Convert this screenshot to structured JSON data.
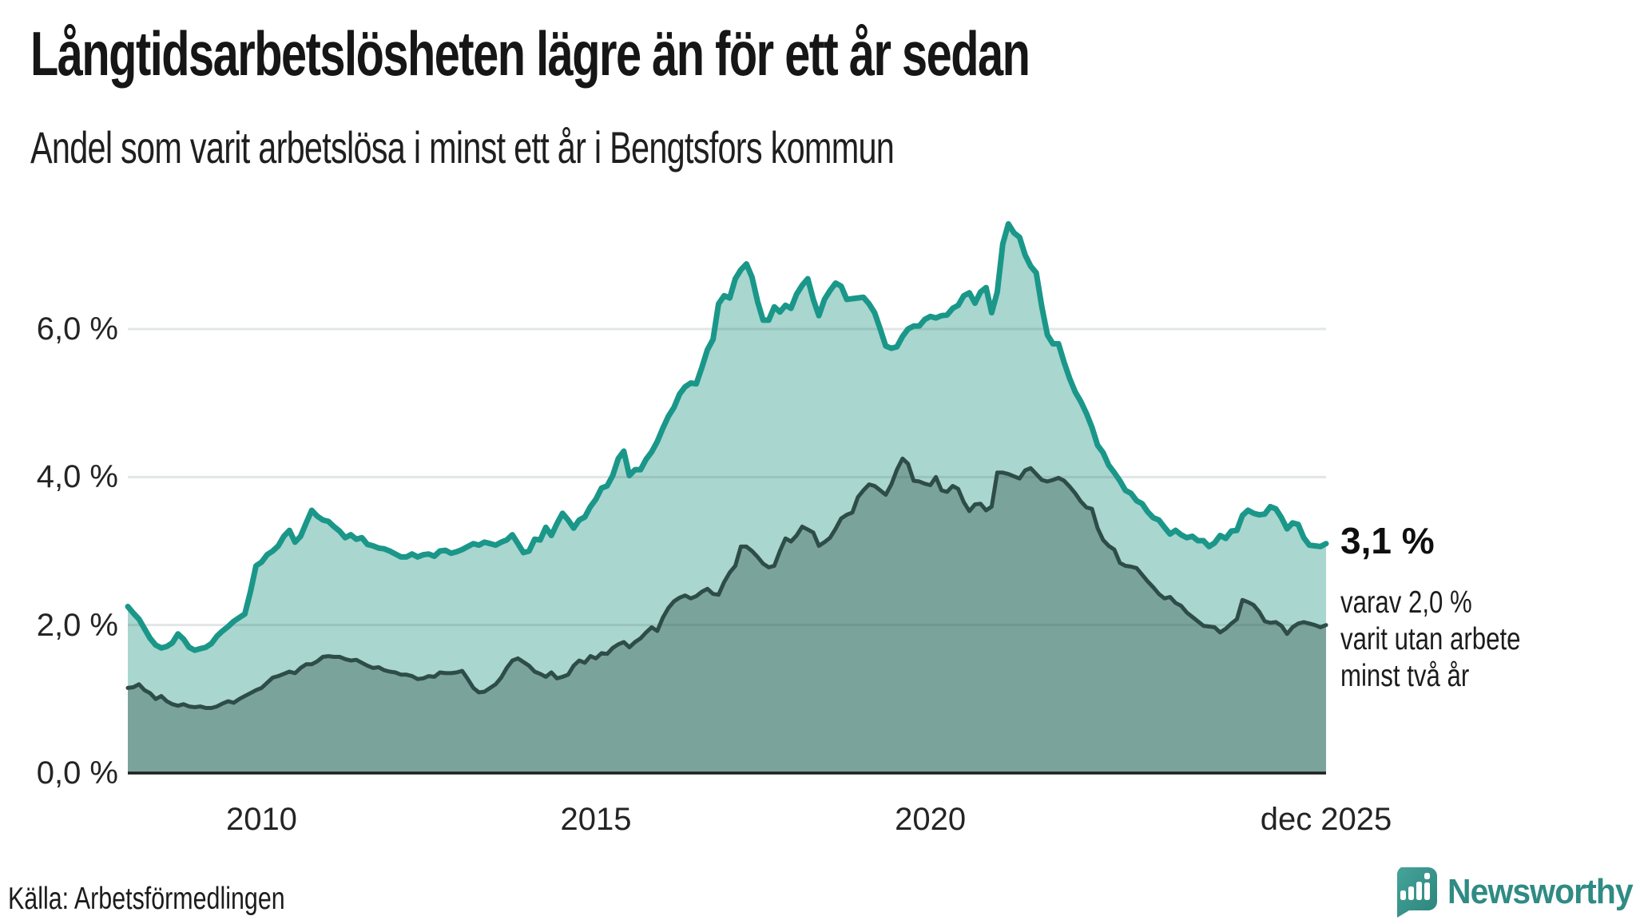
{
  "header": {
    "title": "Långtidsarbetslösheten lägre än för ett år sedan",
    "subtitle": "Andel som varit arbetslösa i minst ett år i Bengtsfors kommun"
  },
  "chart_data": {
    "type": "area",
    "unit": "%",
    "x_start": "jan 2008",
    "x_end": "dec 2025",
    "x_frequency": "monthly",
    "ylim": [
      0,
      8.3
    ],
    "grid": "horizontal",
    "series": [
      {
        "name": "Andel arbetslösa minst ett år",
        "line_color": "#1a9789",
        "fill_color": "#a9d6cf",
        "values": [
          2.25,
          2.16,
          2.08,
          1.95,
          1.82,
          1.73,
          1.69,
          1.71,
          1.76,
          1.88,
          1.81,
          1.7,
          1.66,
          1.68,
          1.7,
          1.75,
          1.85,
          1.92,
          1.98,
          2.05,
          2.1,
          2.15,
          2.45,
          2.8,
          2.85,
          2.95,
          3.0,
          3.07,
          3.2,
          3.28,
          3.12,
          3.2,
          3.38,
          3.55,
          3.47,
          3.42,
          3.4,
          3.33,
          3.27,
          3.18,
          3.22,
          3.16,
          3.18,
          3.09,
          3.07,
          3.04,
          3.03,
          3.0,
          2.96,
          2.92,
          2.92,
          2.96,
          2.92,
          2.95,
          2.96,
          2.93,
          3.0,
          3.01,
          2.97,
          2.99,
          3.02,
          3.06,
          3.1,
          3.08,
          3.12,
          3.1,
          3.08,
          3.12,
          3.15,
          3.22,
          3.1,
          2.98,
          3.0,
          3.16,
          3.15,
          3.32,
          3.21,
          3.37,
          3.51,
          3.42,
          3.31,
          3.42,
          3.46,
          3.6,
          3.7,
          3.85,
          3.88,
          4.02,
          4.25,
          4.35,
          4.02,
          4.1,
          4.1,
          4.24,
          4.34,
          4.48,
          4.66,
          4.82,
          4.94,
          5.12,
          5.22,
          5.27,
          5.26,
          5.48,
          5.72,
          5.86,
          6.34,
          6.45,
          6.42,
          6.68,
          6.8,
          6.88,
          6.7,
          6.37,
          6.12,
          6.12,
          6.3,
          6.23,
          6.32,
          6.28,
          6.47,
          6.59,
          6.68,
          6.4,
          6.18,
          6.4,
          6.52,
          6.62,
          6.58,
          6.4,
          6.41,
          6.42,
          6.43,
          6.34,
          6.22,
          6.0,
          5.77,
          5.74,
          5.76,
          5.9,
          6.0,
          6.04,
          6.04,
          6.13,
          6.17,
          6.15,
          6.18,
          6.19,
          6.28,
          6.32,
          6.45,
          6.49,
          6.35,
          6.5,
          6.56,
          6.22,
          6.5,
          7.15,
          7.42,
          7.3,
          7.24,
          7.0,
          6.85,
          6.76,
          6.3,
          5.92,
          5.8,
          5.8,
          5.55,
          5.33,
          5.15,
          5.02,
          4.86,
          4.67,
          4.43,
          4.33,
          4.16,
          4.06,
          3.95,
          3.82,
          3.78,
          3.68,
          3.64,
          3.53,
          3.45,
          3.42,
          3.32,
          3.23,
          3.28,
          3.22,
          3.18,
          3.2,
          3.14,
          3.14,
          3.06,
          3.11,
          3.21,
          3.17,
          3.27,
          3.28,
          3.48,
          3.55,
          3.51,
          3.49,
          3.5,
          3.6,
          3.57,
          3.45,
          3.3,
          3.38,
          3.36,
          3.18,
          3.08,
          3.07,
          3.06,
          3.1
        ]
      },
      {
        "name": "Varav arbetslösa minst två år",
        "line_color": "#2e4d48",
        "fill_color": "#7aa39c",
        "values": [
          1.15,
          1.16,
          1.2,
          1.12,
          1.08,
          1.0,
          1.04,
          0.97,
          0.93,
          0.91,
          0.93,
          0.9,
          0.89,
          0.9,
          0.88,
          0.88,
          0.9,
          0.94,
          0.97,
          0.95,
          1.0,
          1.04,
          1.08,
          1.12,
          1.15,
          1.22,
          1.29,
          1.31,
          1.34,
          1.37,
          1.35,
          1.42,
          1.47,
          1.47,
          1.51,
          1.57,
          1.58,
          1.57,
          1.57,
          1.54,
          1.52,
          1.53,
          1.49,
          1.45,
          1.42,
          1.43,
          1.39,
          1.37,
          1.36,
          1.33,
          1.33,
          1.31,
          1.27,
          1.28,
          1.31,
          1.3,
          1.36,
          1.35,
          1.35,
          1.36,
          1.38,
          1.27,
          1.15,
          1.09,
          1.1,
          1.15,
          1.2,
          1.29,
          1.42,
          1.52,
          1.55,
          1.5,
          1.45,
          1.37,
          1.34,
          1.3,
          1.36,
          1.28,
          1.3,
          1.33,
          1.45,
          1.52,
          1.49,
          1.58,
          1.55,
          1.62,
          1.61,
          1.69,
          1.74,
          1.77,
          1.7,
          1.77,
          1.82,
          1.9,
          1.97,
          1.92,
          2.1,
          2.23,
          2.32,
          2.37,
          2.4,
          2.36,
          2.39,
          2.45,
          2.49,
          2.42,
          2.41,
          2.58,
          2.71,
          2.8,
          3.06,
          3.06,
          3.0,
          2.92,
          2.83,
          2.78,
          2.8,
          3.0,
          3.17,
          3.13,
          3.21,
          3.33,
          3.29,
          3.25,
          3.07,
          3.12,
          3.18,
          3.3,
          3.44,
          3.49,
          3.52,
          3.73,
          3.82,
          3.9,
          3.88,
          3.82,
          3.76,
          3.9,
          4.1,
          4.25,
          4.18,
          3.95,
          3.94,
          3.91,
          3.89,
          4.0,
          3.82,
          3.8,
          3.88,
          3.84,
          3.66,
          3.54,
          3.63,
          3.64,
          3.55,
          3.6,
          4.06,
          4.06,
          4.04,
          4.01,
          3.98,
          4.09,
          4.12,
          4.04,
          3.96,
          3.94,
          3.96,
          3.99,
          3.95,
          3.87,
          3.78,
          3.67,
          3.59,
          3.57,
          3.31,
          3.15,
          3.07,
          3.02,
          2.84,
          2.8,
          2.79,
          2.77,
          2.68,
          2.59,
          2.51,
          2.42,
          2.36,
          2.38,
          2.3,
          2.26,
          2.17,
          2.11,
          2.05,
          1.99,
          1.98,
          1.97,
          1.9,
          1.95,
          2.02,
          2.08,
          2.34,
          2.31,
          2.27,
          2.18,
          2.05,
          2.03,
          2.04,
          1.99,
          1.88,
          1.97,
          2.02,
          2.04,
          2.02,
          2.0,
          1.97,
          2.0
        ]
      }
    ],
    "yticks": [
      {
        "label": "0,0 %",
        "value": 0
      },
      {
        "label": "2,0 %",
        "value": 2
      },
      {
        "label": "4,0 %",
        "value": 4
      },
      {
        "label": "6,0 %",
        "value": 6
      }
    ],
    "xticks": [
      {
        "label": "2010",
        "month_index": 24
      },
      {
        "label": "2015",
        "month_index": 84
      },
      {
        "label": "2020",
        "month_index": 144
      },
      {
        "label": "dec 2025",
        "month_index": 215
      }
    ],
    "annotation": {
      "value_label": "3,1 %",
      "lines": [
        "varav 2,0 %",
        "varit utan arbete",
        "minst två år"
      ]
    }
  },
  "footer": {
    "source": "Källa: Arbetsförmedlingen",
    "logo_text": "Newsworthy"
  },
  "colors": {
    "accent_teal": "#1a9789",
    "light_fill": "#a9d6cf",
    "dark_fill": "#7aa39c",
    "dark_line": "#2e4d48",
    "baseline": "#1f1f1f",
    "gridline": "rgba(70,85,90,0.15)",
    "logo": "#2f8b83"
  }
}
